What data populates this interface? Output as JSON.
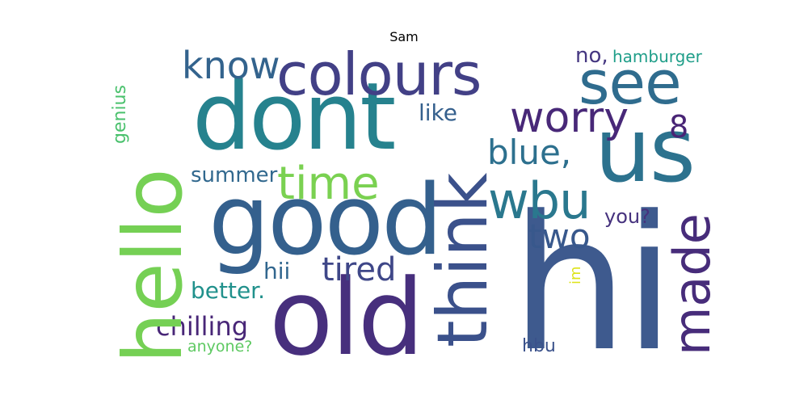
{
  "title": "Sam",
  "words": [
    {
      "text": "hi",
      "color": "#3e5a8e"
    },
    {
      "text": "dont",
      "color": "#26828e"
    },
    {
      "text": "good",
      "color": "#34608d"
    },
    {
      "text": "old",
      "color": "#472f7d"
    },
    {
      "text": "hello",
      "color": "#75d054"
    },
    {
      "text": "colours",
      "color": "#424086"
    },
    {
      "text": "us",
      "color": "#2c728e"
    },
    {
      "text": "see",
      "color": "#2f6c8e"
    },
    {
      "text": "think",
      "color": "#3b518b"
    },
    {
      "text": "know",
      "color": "#33638d"
    },
    {
      "text": "worry",
      "color": "#482878"
    },
    {
      "text": "made",
      "color": "#472c7a"
    },
    {
      "text": "time",
      "color": "#7ad151"
    },
    {
      "text": "wbu",
      "color": "#2a788e"
    },
    {
      "text": "blue,",
      "color": "#2d708e"
    },
    {
      "text": "two",
      "color": "#38588c"
    },
    {
      "text": "tired",
      "color": "#3f4788"
    },
    {
      "text": "8",
      "color": "#482475"
    },
    {
      "text": "chilling",
      "color": "#482677"
    },
    {
      "text": "summer",
      "color": "#31688e"
    },
    {
      "text": "better.",
      "color": "#21918c"
    },
    {
      "text": "hii",
      "color": "#31668e"
    },
    {
      "text": "like",
      "color": "#35608d"
    },
    {
      "text": "no,",
      "color": "#453781"
    },
    {
      "text": "hamburger",
      "color": "#1f9e89"
    },
    {
      "text": "genius",
      "color": "#4ac16d"
    },
    {
      "text": "you?",
      "color": "#46327e"
    },
    {
      "text": "im",
      "color": "#dde318"
    },
    {
      "text": "anyone?",
      "color": "#5ec962"
    },
    {
      "text": "hbu",
      "color": "#3b528b"
    }
  ]
}
